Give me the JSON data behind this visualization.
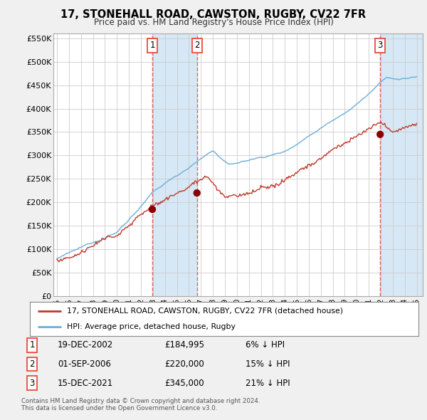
{
  "title": "17, STONEHALL ROAD, CAWSTON, RUGBY, CV22 7FR",
  "subtitle": "Price paid vs. HM Land Registry's House Price Index (HPI)",
  "legend_line1": "17, STONEHALL ROAD, CAWSTON, RUGBY, CV22 7FR (detached house)",
  "legend_line2": "HPI: Average price, detached house, Rugby",
  "sale1_label": "1",
  "sale1_date": "19-DEC-2002",
  "sale1_price": "£184,995",
  "sale1_hpi": "6% ↓ HPI",
  "sale1_year": 2002.95,
  "sale1_value": 184995,
  "sale2_label": "2",
  "sale2_date": "01-SEP-2006",
  "sale2_price": "£220,000",
  "sale2_hpi": "15% ↓ HPI",
  "sale2_year": 2006.67,
  "sale2_value": 220000,
  "sale3_label": "3",
  "sale3_date": "15-DEC-2021",
  "sale3_price": "£345,000",
  "sale3_hpi": "21% ↓ HPI",
  "sale3_year": 2021.95,
  "sale3_value": 345000,
  "footer1": "Contains HM Land Registry data © Crown copyright and database right 2024.",
  "footer2": "This data is licensed under the Open Government Licence v3.0.",
  "hpi_color": "#6baed6",
  "price_color": "#c0392b",
  "vline_color": "#e74c3c",
  "span_color": "#d6e8f5",
  "background_color": "#f0f0f0",
  "plot_bg_color": "#ffffff",
  "ylim": [
    0,
    560000
  ],
  "yticks": [
    0,
    50000,
    100000,
    150000,
    200000,
    250000,
    300000,
    350000,
    400000,
    450000,
    500000,
    550000
  ],
  "xlim_start": 1994.7,
  "xlim_end": 2025.5,
  "xticks": [
    1995,
    1996,
    1997,
    1998,
    1999,
    2000,
    2001,
    2002,
    2003,
    2004,
    2005,
    2006,
    2007,
    2008,
    2009,
    2010,
    2011,
    2012,
    2013,
    2014,
    2015,
    2016,
    2017,
    2018,
    2019,
    2020,
    2021,
    2022,
    2023,
    2024,
    2025
  ]
}
